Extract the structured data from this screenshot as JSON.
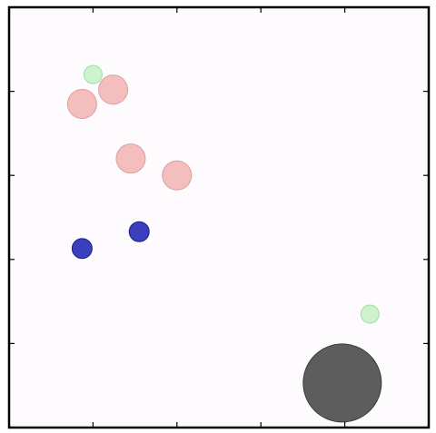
{
  "chart_data": {
    "type": "scatter",
    "title": "",
    "xlabel": "",
    "ylabel": "",
    "xlim": [
      0,
      5
    ],
    "ylim": [
      0,
      5
    ],
    "grid": false,
    "legend": "none",
    "background": "#fdfbfd",
    "x_ticks": [
      1,
      2,
      3,
      4
    ],
    "y_ticks": [
      1,
      2,
      3,
      4
    ],
    "x_tick_labels": [],
    "y_tick_labels": [],
    "series": [
      {
        "color": "#f4b8b8",
        "edge": "#d9a0a0",
        "points": [
          {
            "x": 0.87,
            "y": 3.85,
            "size": 16
          },
          {
            "x": 1.24,
            "y": 4.02,
            "size": 16
          },
          {
            "x": 1.45,
            "y": 3.2,
            "size": 16
          },
          {
            "x": 2.0,
            "y": 3.0,
            "size": 16
          }
        ]
      },
      {
        "color": "#c8f2c8",
        "edge": "#a6d8a6",
        "points": [
          {
            "x": 1.0,
            "y": 4.2,
            "size": 10
          },
          {
            "x": 4.3,
            "y": 1.35,
            "size": 10
          }
        ]
      },
      {
        "color": "#2a2fb5",
        "edge": "#1c1f8a",
        "points": [
          {
            "x": 0.87,
            "y": 2.13,
            "size": 11
          },
          {
            "x": 1.55,
            "y": 2.33,
            "size": 11
          }
        ]
      },
      {
        "color": "#4f4f4f",
        "edge": "#3a3a3a",
        "points": [
          {
            "x": 3.97,
            "y": 0.53,
            "size": 43
          }
        ]
      }
    ]
  }
}
